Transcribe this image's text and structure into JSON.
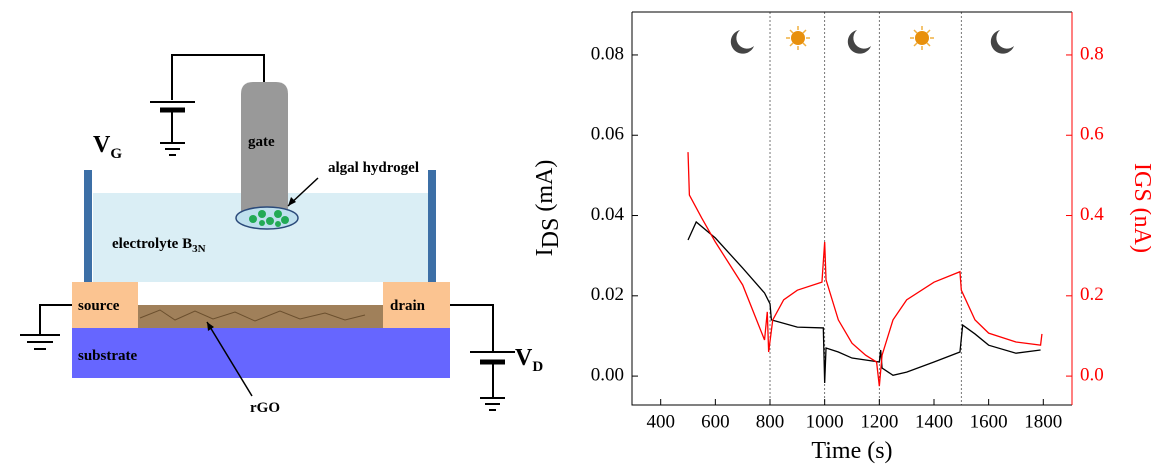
{
  "diagram": {
    "vg": "V",
    "vg_sub": "G",
    "gate": "gate",
    "hydrogel": "algal hydrogel",
    "electrolyte": "electrolyte B",
    "electrolyte_sub": "3N",
    "source": "source",
    "drain": "drain",
    "substrate": "substrate",
    "rgo": "rGO",
    "vd": "V",
    "vd_sub": "D"
  },
  "chart_data": {
    "type": "line",
    "xlabel": "Time (s)",
    "ylabel": "I",
    "ylabel_sub": "DS",
    "ylabel_unit": " (mA)",
    "y2label": "IGS (nA)",
    "xlim": [
      295,
      1905
    ],
    "xticks": [
      400,
      600,
      800,
      1000,
      1200,
      1400,
      1600,
      1800
    ],
    "ylim": [
      -0.0072,
      0.0907
    ],
    "yticks": [
      {
        "value": 0,
        "label": "0.00"
      },
      0.02,
      0.04,
      0.06,
      0.08
    ],
    "y2lim": [
      -0.072,
      0.907
    ],
    "y2ticks": [
      {
        "value": 0,
        "label": "0.0"
      },
      0.2,
      0.4,
      0.6,
      0.8
    ],
    "phase_lines": [
      800,
      1000,
      1200,
      1500
    ],
    "series": [
      {
        "name": "IDS",
        "color": "#000000",
        "axis": "y",
        "x": [
          500,
          530,
          600,
          700,
          780,
          800,
          805,
          900,
          995,
          1000,
          1005,
          1050,
          1100,
          1200,
          1205,
          1210,
          1250,
          1300,
          1400,
          1495,
          1505,
          1550,
          1600,
          1700,
          1790
        ],
        "values": [
          0.0339,
          0.0384,
          0.0344,
          0.0269,
          0.0207,
          0.018,
          0.014,
          0.0122,
          0.012,
          -0.0017,
          0.007,
          0.006,
          0.0045,
          0.0035,
          0.0065,
          0.002,
          0.0002,
          0.001,
          0.0035,
          0.006,
          0.0127,
          0.0105,
          0.0077,
          0.0057,
          0.0065
        ]
      },
      {
        "name": "IGS",
        "color": "#ff0000",
        "axis": "y2",
        "x": [
          500,
          505,
          550,
          600,
          700,
          780,
          790,
          795,
          810,
          850,
          900,
          990,
          1000,
          1005,
          1050,
          1100,
          1150,
          1190,
          1200,
          1210,
          1250,
          1300,
          1400,
          1495,
          1500,
          1550,
          1600,
          1700,
          1790,
          1795
        ],
        "values": [
          0.558,
          0.451,
          0.394,
          0.334,
          0.227,
          0.09,
          0.16,
          0.06,
          0.14,
          0.19,
          0.214,
          0.234,
          0.334,
          0.24,
          0.14,
          0.082,
          0.052,
          0.035,
          -0.025,
          0.052,
          0.14,
          0.19,
          0.234,
          0.26,
          0.214,
          0.14,
          0.107,
          0.085,
          0.077,
          0.105
        ]
      }
    ]
  }
}
